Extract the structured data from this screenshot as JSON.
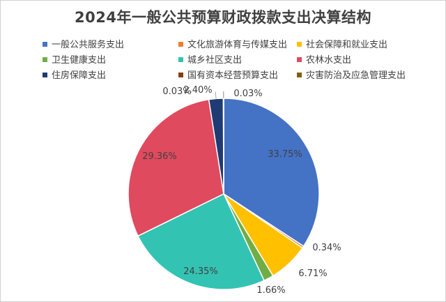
{
  "chart_data": {
    "type": "pie",
    "title": "2024年一般公共预算财政拨款支出决算结构",
    "categories": [
      "一般公共服务支出",
      "文化旅游体育与传媒支出",
      "社会保障和就业支出",
      "卫生健康支出",
      "城乡社区支出",
      "农林水支出",
      "住房保障支出",
      "国有资本经营预算支出",
      "灾害防治及应急管理支出"
    ],
    "values": [
      33.75,
      0.34,
      6.71,
      1.66,
      24.35,
      29.36,
      2.4,
      0.03,
      0.03
    ],
    "labels": [
      "33.75%",
      "0.34%",
      "6.71%",
      "1.66%",
      "24.35%",
      "29.36%",
      "2.40%",
      "0.03%",
      "0.03%"
    ],
    "colors": [
      "#4472c4",
      "#ed7d31",
      "#ffc000",
      "#70ad47",
      "#33c3b3",
      "#e04a5e",
      "#1f3b73",
      "#8a3b12",
      "#7f6000"
    ],
    "legend_position": "top"
  }
}
